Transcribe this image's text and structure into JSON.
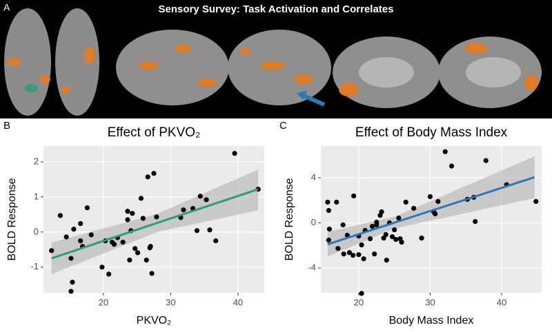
{
  "figure": {
    "panel_a": {
      "label": "A",
      "title": "Sensory Survey: Task Activation and Correlates"
    }
  },
  "chart_data": [
    {
      "type": "scatter",
      "label": "B",
      "title": "Effect of PKVO₂",
      "x_label": "PKVO₂",
      "y_label": "BOLD Response",
      "color": "#000000",
      "fit_color": "#2aa072",
      "band_color": "#bdbdbd",
      "xlim": [
        11.1,
        43.9
      ],
      "ylim": [
        -1.73,
        2.45
      ],
      "xticks": [
        20,
        30,
        40
      ],
      "yticks": [
        -1,
        0,
        1,
        2
      ],
      "grid": true,
      "x": [
        12.3,
        13.6,
        14.5,
        15.2,
        15.2,
        15.4,
        15.6,
        16.6,
        16.6,
        16.9,
        17.6,
        18.2,
        19.8,
        20.3,
        20.8,
        21.3,
        21.6,
        22.1,
        22.9,
        23.6,
        23.6,
        23.9,
        24.1,
        24.3,
        24.7,
        25.1,
        25.6,
        25.9,
        26.4,
        26.6,
        26.9,
        27.0,
        27.2,
        27.5,
        27.9,
        31.5,
        31.9,
        33.3,
        33.9,
        34.4,
        35.3,
        35.8,
        36.7,
        39.5,
        43.0
      ],
      "values": [
        -0.53,
        0.47,
        -0.14,
        -0.75,
        -1.69,
        -1.43,
        0.08,
        0.24,
        -0.25,
        -0.41,
        0.69,
        -0.08,
        -1.0,
        -0.25,
        -1.2,
        -0.29,
        -0.35,
        -0.16,
        -0.29,
        0.59,
        0.35,
        -0.8,
        0.04,
        0.53,
        -0.47,
        -0.59,
        0.96,
        0.39,
        -0.8,
        1.57,
        -0.45,
        -0.41,
        -1.18,
        1.67,
        0.43,
        0.41,
        0.63,
        0.67,
        0.04,
        1.02,
        0.92,
        0.06,
        -0.25,
        2.24,
        1.22
      ],
      "fit": {
        "x": [
          12.3,
          28,
          43.0
        ],
        "y": [
          -0.75,
          0.26,
          1.22
        ],
        "ci_upper": [
          -0.3,
          0.52,
          1.78
        ],
        "ci_lower": [
          -1.2,
          0.0,
          0.62
        ]
      }
    },
    {
      "type": "scatter",
      "label": "C",
      "title": "Effect of Body Mass Index",
      "x_label": "Body Mass Index",
      "y_label": "BOLD Response",
      "color": "#000000",
      "fit_color": "#2878b8",
      "band_color": "#bdbdbd",
      "xlim": [
        14.7,
        45.6
      ],
      "ylim": [
        -6.2,
        6.82
      ],
      "xticks": [
        20,
        30,
        40
      ],
      "yticks": [
        -4,
        0,
        4
      ],
      "grid": true,
      "x": [
        15.65,
        15.8,
        15.8,
        15.9,
        16.9,
        17.1,
        17.8,
        17.9,
        18.4,
        18.7,
        19.2,
        19.3,
        20.0,
        20.0,
        20.4,
        20.7,
        20.4,
        20.9,
        21.6,
        21.9,
        22.2,
        22.5,
        22.5,
        23.0,
        23.2,
        23.5,
        23.8,
        23.9,
        24.3,
        24.7,
        25.0,
        25.2,
        25.6,
        25.8,
        26.0,
        26.6,
        27.7,
        28.8,
        30.0,
        30.5,
        30.7,
        31.1,
        32.1,
        33.0,
        35.2,
        36.1,
        36.3,
        37.8,
        40.7,
        44.8
      ],
      "values": [
        1.84,
        -1.53,
        1.1,
        -0.55,
        1.84,
        -2.27,
        -0.18,
        -2.76,
        -1.1,
        -2.64,
        -2.88,
        2.39,
        -1.17,
        -2.82,
        -1.96,
        -3.19,
        -6.26,
        -0.67,
        -1.41,
        -0.31,
        -2.76,
        -0.18,
        0.06,
        0.67,
        0.98,
        -1.35,
        -1.04,
        -3.31,
        0,
        -1.23,
        -0.61,
        -1.47,
        0.43,
        -1.41,
        -1.72,
        1.84,
        1.29,
        -1.35,
        2.33,
        0.98,
        0.8,
        1.9,
        6.32,
        5.04,
        2.09,
        2.27,
        0.12,
        5.53,
        3.39,
        1.9
      ],
      "fit": {
        "x": [
          15.65,
          25,
          44.6
        ],
        "y": [
          -1.9,
          0.02,
          4.05
        ],
        "ci_upper": [
          -0.8,
          0.55,
          5.9
        ],
        "ci_lower": [
          -3.0,
          -0.5,
          2.2
        ]
      }
    }
  ]
}
